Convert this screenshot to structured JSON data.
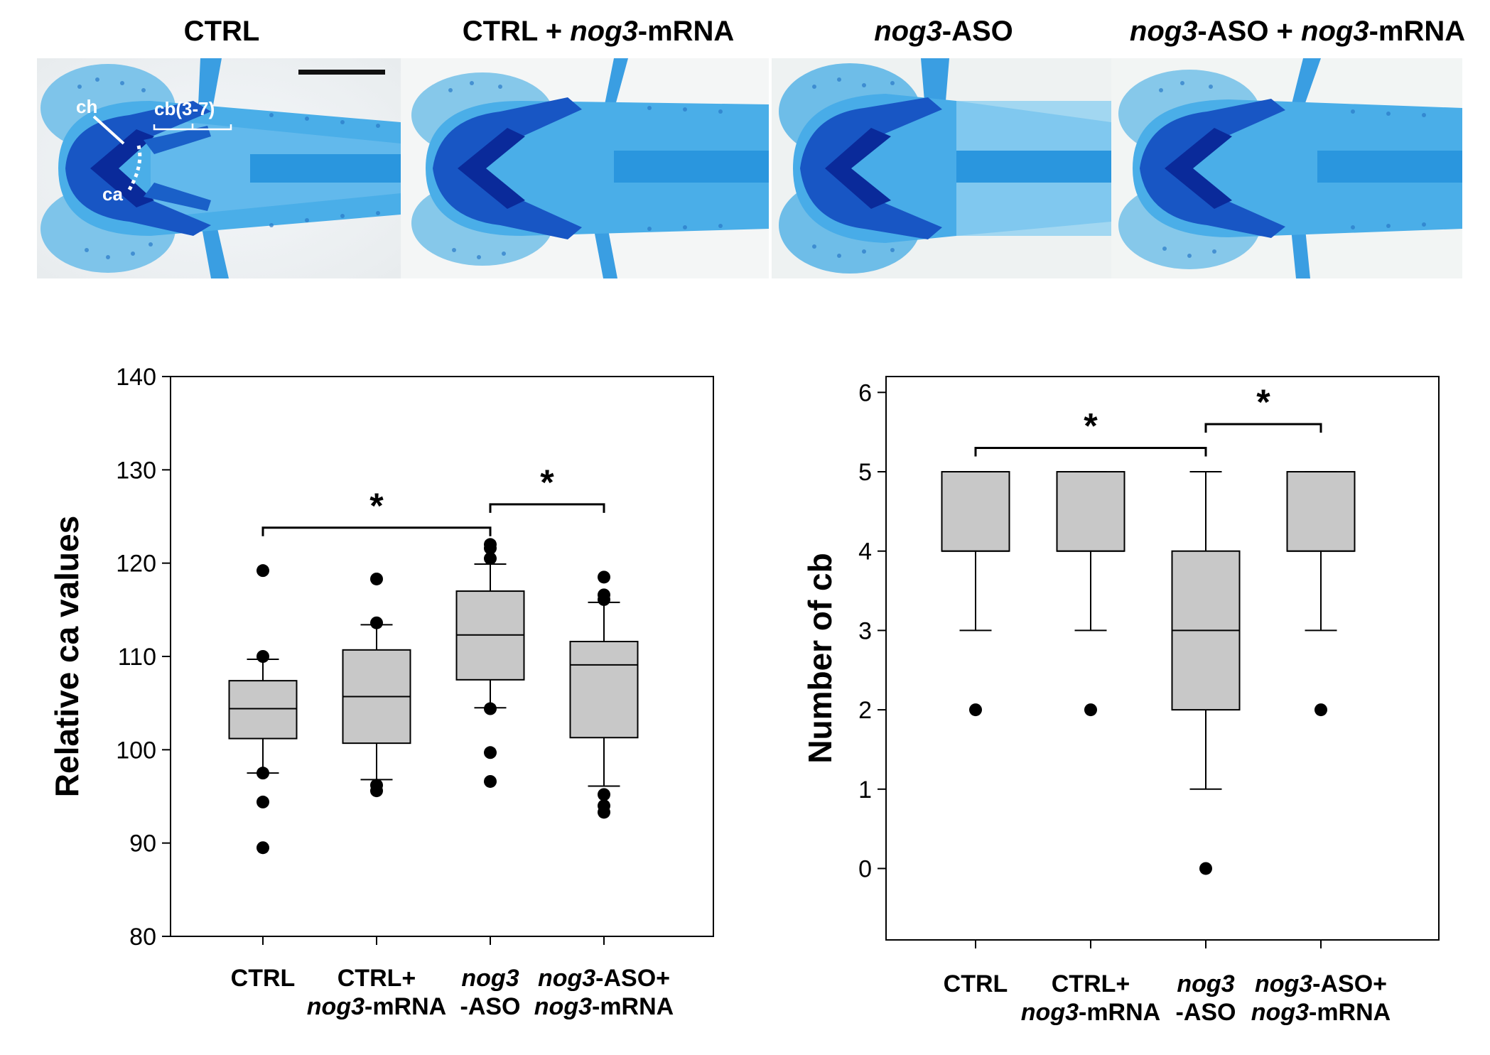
{
  "image_panels": [
    {
      "label_italic": "",
      "label_plain": "CTRL",
      "label_italic2": "",
      "label_plain2": ""
    },
    {
      "label_italic": "",
      "label_plain": "CTRL + ",
      "label_italic2": "nog3",
      "label_plain2": "-mRNA"
    },
    {
      "label_italic": "nog3",
      "label_plain": "-ASO",
      "label_italic2": "",
      "label_plain2": ""
    },
    {
      "label_italic": "nog3",
      "label_plain": "-ASO + ",
      "label_italic2": "nog3",
      "label_plain2": "-mRNA"
    }
  ],
  "photo_annotations": {
    "ch": "ch",
    "cb": "cb(3-7)",
    "ca": "ca"
  },
  "colors": {
    "stain": "#1e8fe0",
    "stain_dark": "#0a2a9a",
    "box_fill": "#c8c8c8",
    "background": "#ffffff"
  },
  "chart_data": [
    {
      "type": "box",
      "title": "",
      "xlabel": "",
      "ylabel": "Relative ca  values",
      "ylim": [
        80,
        140
      ],
      "yticks": [
        80,
        90,
        100,
        110,
        120,
        130,
        140
      ],
      "categories": [
        {
          "line1_plain": "CTRL",
          "line1_italic": "",
          "line2_italic": "",
          "line2_plain": ""
        },
        {
          "line1_plain": "CTRL+",
          "line1_italic": "",
          "line2_italic": "nog3",
          "line2_plain": "-mRNA"
        },
        {
          "line1_plain": "",
          "line1_italic": "nog3",
          "line2_italic": "",
          "line2_plain": "-ASO"
        },
        {
          "line1_plain": "-ASO+",
          "line1_italic": "nog3",
          "line2_italic": "nog3",
          "line2_plain": "-mRNA"
        }
      ],
      "boxes": [
        {
          "whisker_low": 97.5,
          "q1": 101.2,
          "median": 104.4,
          "q3": 107.4,
          "whisker_high": 109.7,
          "outliers": [
            119.2,
            110.0,
            97.5,
            94.4,
            89.5
          ]
        },
        {
          "whisker_low": 96.8,
          "q1": 100.7,
          "median": 105.7,
          "q3": 110.7,
          "whisker_high": 113.4,
          "outliers": [
            118.3,
            113.6,
            96.2,
            95.6
          ]
        },
        {
          "whisker_low": 104.5,
          "q1": 107.5,
          "median": 112.3,
          "q3": 117.0,
          "whisker_high": 119.9,
          "outliers": [
            122.0,
            121.6,
            120.5,
            104.4,
            99.7,
            96.6
          ]
        },
        {
          "whisker_low": 96.1,
          "q1": 101.3,
          "median": 109.1,
          "q3": 111.6,
          "whisker_high": 115.8,
          "outliers": [
            118.5,
            116.6,
            116.1,
            95.2,
            94.0,
            93.3
          ]
        }
      ],
      "significance": [
        {
          "from": 0,
          "to": 2,
          "y": 123.8,
          "label": "*"
        },
        {
          "from": 2,
          "to": 3,
          "y": 126.3,
          "label": "*"
        }
      ],
      "grid": false
    },
    {
      "type": "box",
      "title": "",
      "xlabel": "",
      "ylabel": "Number of cb",
      "ylim": [
        -0.9,
        6.2
      ],
      "yticks": [
        0,
        1,
        2,
        3,
        4,
        5,
        6
      ],
      "categories": [
        {
          "line1_plain": "CTRL",
          "line1_italic": "",
          "line2_italic": "",
          "line2_plain": ""
        },
        {
          "line1_plain": "CTRL+",
          "line1_italic": "",
          "line2_italic": "nog3",
          "line2_plain": "-mRNA"
        },
        {
          "line1_plain": "",
          "line1_italic": "nog3",
          "line2_italic": "",
          "line2_plain": "-ASO"
        },
        {
          "line1_plain": "-ASO+",
          "line1_italic": "nog3",
          "line2_italic": "nog3",
          "line2_plain": "-mRNA"
        }
      ],
      "boxes": [
        {
          "whisker_low": 3,
          "q1": 4,
          "median": 4,
          "q3": 5,
          "whisker_high": 5,
          "outliers": [
            2
          ]
        },
        {
          "whisker_low": 3,
          "q1": 4,
          "median": 4,
          "q3": 5,
          "whisker_high": 5,
          "outliers": [
            2
          ]
        },
        {
          "whisker_low": 1,
          "q1": 2,
          "median": 3,
          "q3": 4,
          "whisker_high": 5,
          "outliers": [
            0
          ]
        },
        {
          "whisker_low": 3,
          "q1": 4,
          "median": 4,
          "q3": 5,
          "whisker_high": 5,
          "outliers": [
            2
          ]
        }
      ],
      "significance": [
        {
          "from": 0,
          "to": 2,
          "y": 5.3,
          "label": "*"
        },
        {
          "from": 2,
          "to": 3,
          "y": 5.6,
          "label": "*"
        }
      ],
      "grid": false
    }
  ]
}
